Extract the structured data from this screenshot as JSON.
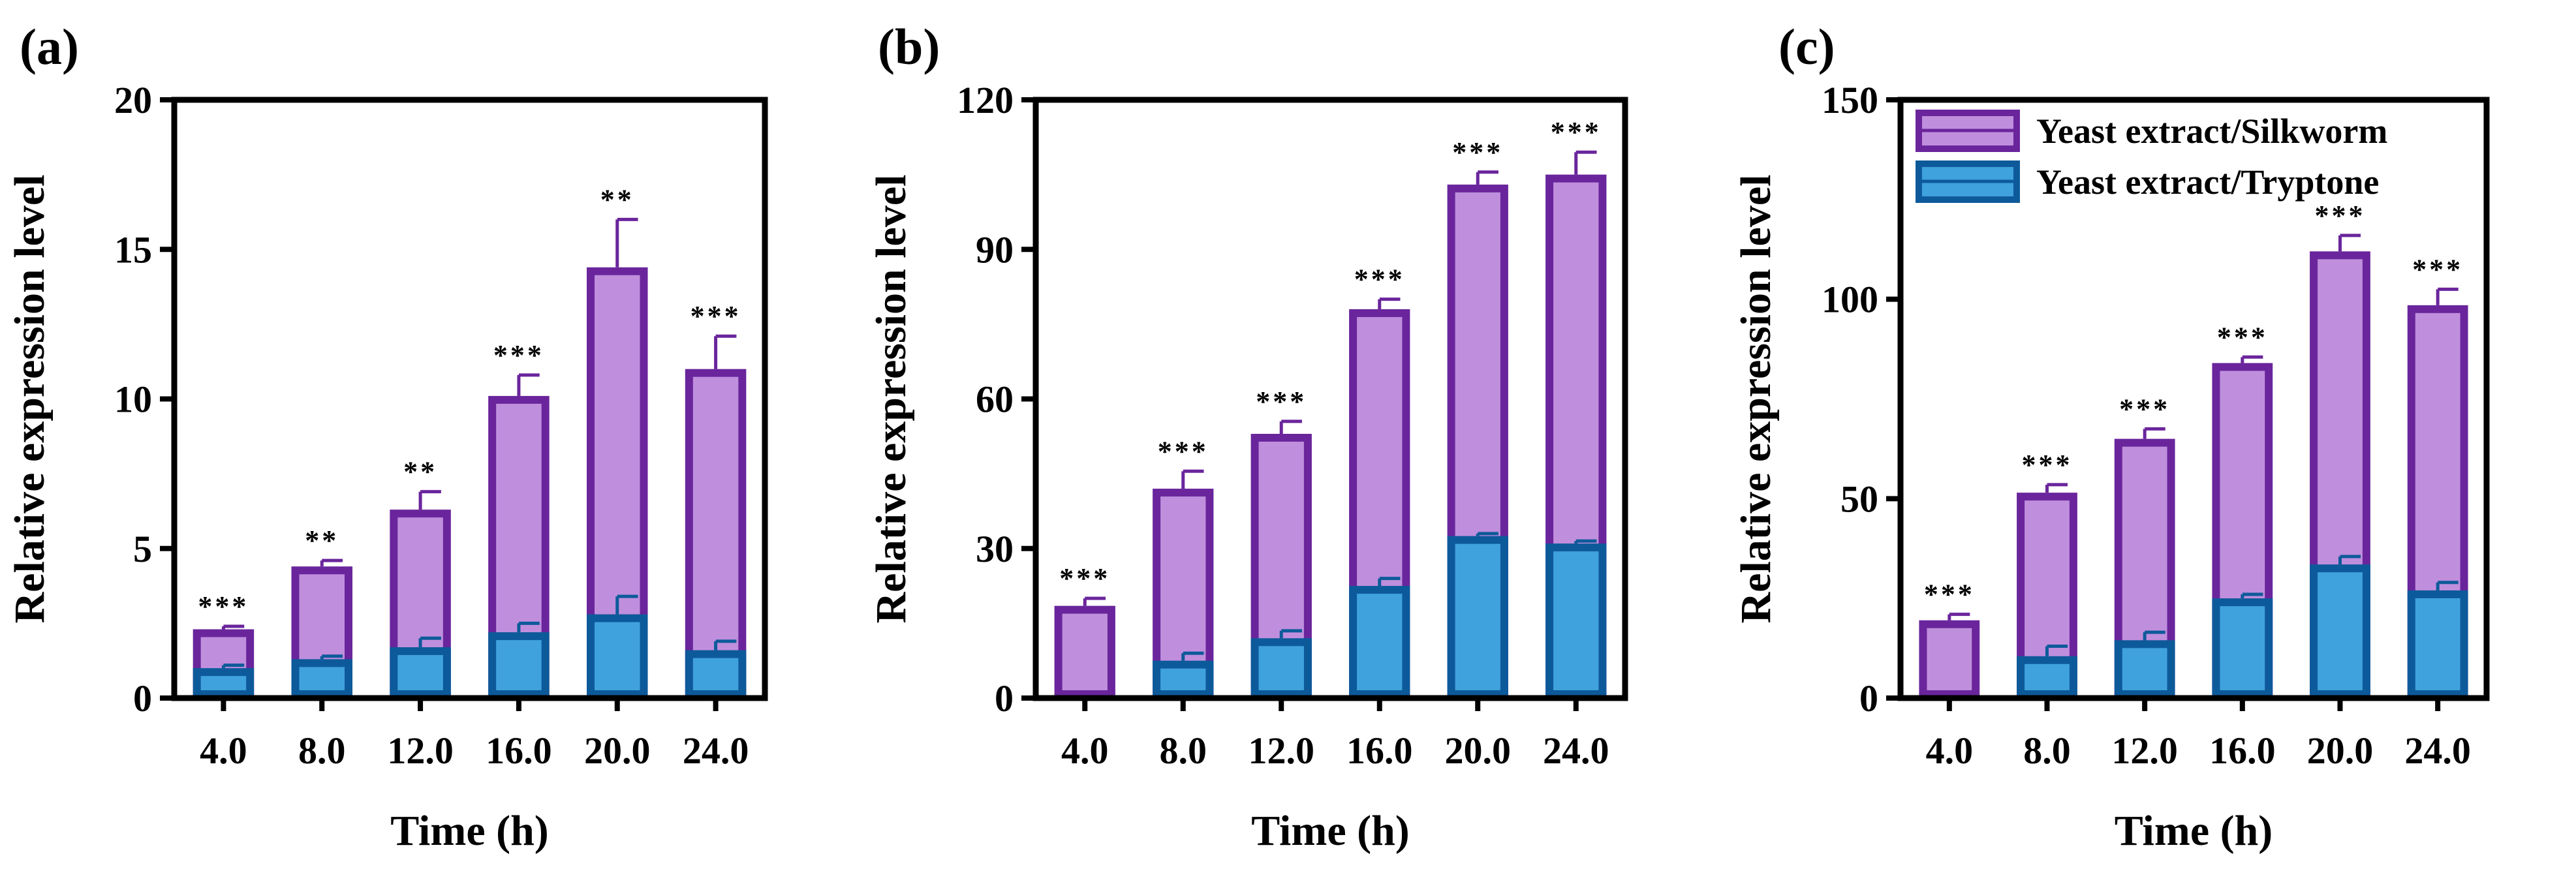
{
  "colors": {
    "silkworm_fill": "#BF8FDD",
    "silkworm_stroke": "#6A259C",
    "tryptone_fill": "#40A2DC",
    "tryptone_stroke": "#0D5A9A",
    "axis": "#000000"
  },
  "legend": {
    "silkworm": "Yeast extract/Silkworm",
    "tryptone": "Yeast extract/Tryptone"
  },
  "chart_data": [
    {
      "type": "bar",
      "panel": "(a)",
      "categories": [
        "4.0",
        "8.0",
        "12.0",
        "16.0",
        "20.0",
        "24.0"
      ],
      "xlabel": "Time (h)",
      "ylabel": "Relative expression level",
      "ylim": [
        0,
        20
      ],
      "yticks": [
        0,
        5,
        10,
        15,
        20
      ],
      "ytick_labels": [
        "0",
        "5",
        "10",
        "15",
        "20"
      ],
      "series": [
        {
          "name": "Yeast extract/Silkworm",
          "values": [
            2.3,
            4.4,
            6.3,
            10.1,
            14.4,
            11.0
          ],
          "errors": [
            0.1,
            0.2,
            0.6,
            0.7,
            1.6,
            1.1
          ]
        },
        {
          "name": "Yeast extract/Tryptone",
          "values": [
            1.0,
            1.3,
            1.7,
            2.2,
            2.8,
            1.6
          ],
          "errors": [
            0.1,
            0.1,
            0.3,
            0.3,
            0.6,
            0.3
          ]
        }
      ],
      "significance": [
        "***",
        "**",
        "**",
        "***",
        "**",
        "***"
      ],
      "legend": false
    },
    {
      "type": "bar",
      "panel": "(b)",
      "categories": [
        "4.0",
        "8.0",
        "12.0",
        "16.0",
        "20.0",
        "24.0"
      ],
      "xlabel": "Time (h)",
      "ylabel": "Relative expression level",
      "ylim": [
        0,
        120
      ],
      "yticks": [
        0,
        30,
        60,
        90,
        120
      ],
      "ytick_labels": [
        "0",
        "30",
        "60",
        "90",
        "120"
      ],
      "series": [
        {
          "name": "Yeast extract/Silkworm",
          "values": [
            18.5,
            42.0,
            53.0,
            78.0,
            103.0,
            105.0
          ],
          "errors": [
            1.5,
            3.5,
            2.5,
            2.0,
            2.5,
            4.5
          ]
        },
        {
          "name": "Yeast extract/Tryptone",
          "values": [
            0.0,
            7.5,
            12.0,
            22.5,
            32.5,
            31.0
          ],
          "errors": [
            0.0,
            1.5,
            1.5,
            1.5,
            0.5,
            0.5
          ]
        }
      ],
      "significance": [
        "***",
        "***",
        "***",
        "***",
        "***",
        "***"
      ],
      "legend": false
    },
    {
      "type": "bar",
      "panel": "(c)",
      "categories": [
        "4.0",
        "8.0",
        "12.0",
        "16.0",
        "20.0",
        "24.0"
      ],
      "xlabel": "Time (h)",
      "ylabel": "Relative expression level",
      "ylim": [
        0,
        150
      ],
      "yticks": [
        0,
        50,
        100,
        150
      ],
      "ytick_labels": [
        "0",
        "50",
        "100",
        "150"
      ],
      "series": [
        {
          "name": "Yeast extract/Silkworm",
          "values": [
            19.5,
            51.5,
            65.0,
            84.0,
            112.0,
            98.5
          ],
          "errors": [
            1.5,
            2.0,
            2.5,
            1.5,
            4.0,
            4.0
          ]
        },
        {
          "name": "Yeast extract/Tryptone",
          "values": [
            0.0,
            10.5,
            14.5,
            25.0,
            33.5,
            27.0
          ],
          "errors": [
            0.0,
            2.5,
            2.0,
            1.0,
            2.0,
            2.0
          ]
        }
      ],
      "significance": [
        "***",
        "***",
        "***",
        "***",
        "***",
        "***"
      ],
      "legend": true,
      "legend_position": "top-left"
    }
  ]
}
